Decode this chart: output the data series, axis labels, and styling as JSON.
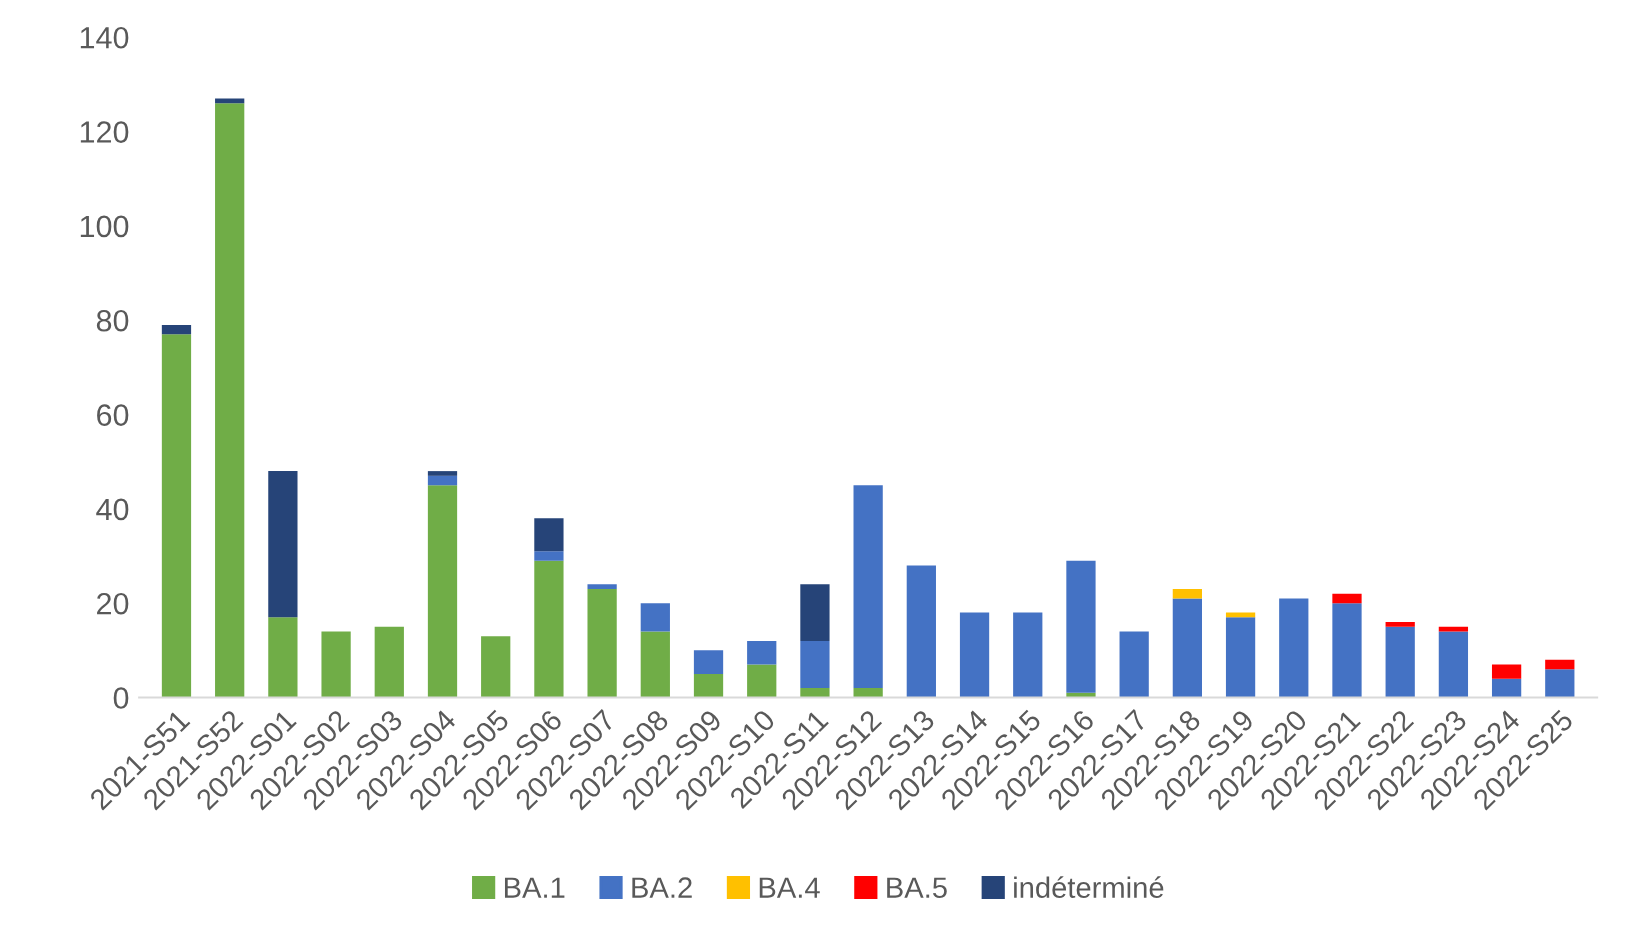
{
  "chart_data": {
    "type": "bar",
    "stacked": true,
    "categories": [
      "2021-S51",
      "2021-S52",
      "2022-S01",
      "2022-S02",
      "2022-S03",
      "2022-S04",
      "2022-S05",
      "2022-S06",
      "2022-S07",
      "2022-S08",
      "2022-S09",
      "2022-S10",
      "2022-S11",
      "2022-S12",
      "2022-S13",
      "2022-S14",
      "2022-S15",
      "2022-S16",
      "2022-S17",
      "2022-S18",
      "2022-S19",
      "2022-S20",
      "2022-S21",
      "2022-S22",
      "2022-S23",
      "2022-S24",
      "2022-S25"
    ],
    "series": [
      {
        "name": "BA.1",
        "color": "#70ad47",
        "values": [
          77,
          126,
          17,
          14,
          15,
          45,
          13,
          29,
          23,
          14,
          5,
          7,
          2,
          2,
          0,
          0,
          0,
          1,
          0,
          0,
          0,
          0,
          0,
          0,
          0,
          0,
          0
        ]
      },
      {
        "name": "BA.2",
        "color": "#4472c4",
        "values": [
          0,
          0,
          0,
          0,
          0,
          2,
          0,
          2,
          1,
          6,
          5,
          5,
          10,
          43,
          28,
          18,
          18,
          28,
          14,
          21,
          17,
          21,
          20,
          15,
          14,
          4,
          6
        ]
      },
      {
        "name": "BA.4",
        "color": "#ffc000",
        "values": [
          0,
          0,
          0,
          0,
          0,
          0,
          0,
          0,
          0,
          0,
          0,
          0,
          0,
          0,
          0,
          0,
          0,
          0,
          0,
          2,
          1,
          0,
          0,
          0,
          0,
          0,
          0
        ]
      },
      {
        "name": "BA.5",
        "color": "#ff0000",
        "values": [
          0,
          0,
          0,
          0,
          0,
          0,
          0,
          0,
          0,
          0,
          0,
          0,
          0,
          0,
          0,
          0,
          0,
          0,
          0,
          0,
          0,
          0,
          2,
          1,
          1,
          3,
          2
        ]
      },
      {
        "name": "indéterminé",
        "color": "#264478",
        "values": [
          2,
          1,
          31,
          0,
          0,
          1,
          0,
          7,
          0,
          0,
          0,
          0,
          12,
          0,
          0,
          0,
          0,
          0,
          0,
          0,
          0,
          0,
          0,
          0,
          0,
          0,
          0
        ]
      }
    ],
    "ylim": [
      0,
      140
    ],
    "yticks": [
      0,
      20,
      40,
      60,
      80,
      100,
      120,
      140
    ],
    "grid": false,
    "legend": "bottom"
  }
}
